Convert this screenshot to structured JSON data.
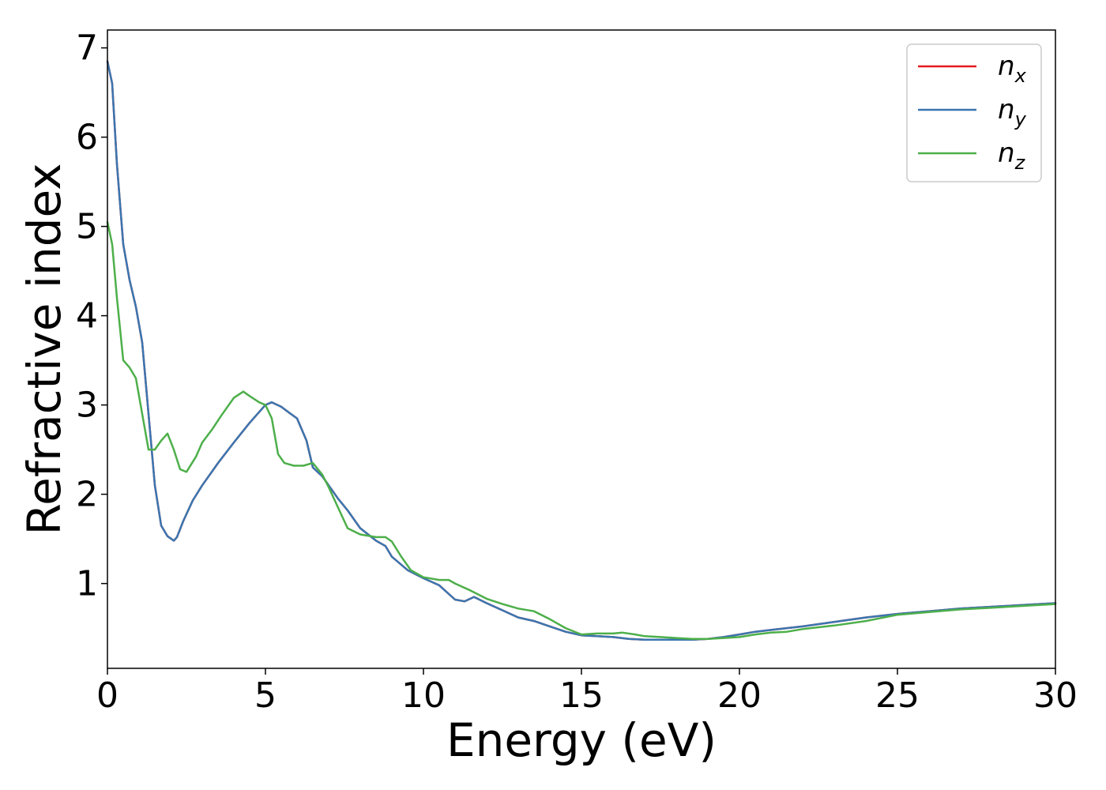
{
  "chart_data": {
    "type": "line",
    "xlabel": "Energy (eV)",
    "ylabel": "Refractive index",
    "xlim": [
      0,
      30
    ],
    "ylim": [
      0.05,
      7.2
    ],
    "xticks": [
      0,
      5,
      10,
      15,
      20,
      25,
      30
    ],
    "yticks": [
      1,
      2,
      3,
      4,
      5,
      6,
      7
    ],
    "grid": false,
    "legend_position": "top-right",
    "series": [
      {
        "name": "n",
        "subscript": "x",
        "color": "#e41a1c",
        "x": [
          0,
          0.15,
          0.3,
          0.5,
          0.7,
          0.9,
          1.1,
          1.3,
          1.5,
          1.7,
          1.9,
          2.1,
          2.2,
          2.4,
          2.7,
          3.0,
          3.5,
          4.0,
          4.5,
          5.0,
          5.2,
          5.5,
          5.8,
          6.0,
          6.3,
          6.5,
          6.8,
          7.0,
          7.3,
          7.6,
          8.0,
          8.5,
          8.8,
          9.0,
          9.5,
          10.0,
          10.5,
          11.0,
          11.3,
          11.6,
          12.0,
          12.5,
          13.0,
          13.5,
          14.0,
          14.5,
          15.0,
          15.5,
          16.0,
          16.5,
          17.0,
          17.5,
          18.0,
          18.5,
          19.0,
          19.5,
          20.0,
          20.5,
          21.0,
          21.5,
          22.0,
          23.0,
          24.0,
          25.0,
          26.0,
          27.0,
          28.0,
          29.0,
          30.0
        ],
        "values": [
          6.85,
          6.6,
          5.7,
          4.8,
          4.4,
          4.1,
          3.7,
          2.9,
          2.1,
          1.65,
          1.53,
          1.48,
          1.52,
          1.7,
          1.93,
          2.1,
          2.35,
          2.58,
          2.8,
          3.0,
          3.03,
          2.98,
          2.9,
          2.85,
          2.6,
          2.3,
          2.2,
          2.1,
          1.95,
          1.82,
          1.62,
          1.48,
          1.42,
          1.3,
          1.15,
          1.06,
          0.98,
          0.82,
          0.8,
          0.85,
          0.78,
          0.7,
          0.62,
          0.58,
          0.52,
          0.46,
          0.42,
          0.41,
          0.4,
          0.38,
          0.37,
          0.37,
          0.37,
          0.37,
          0.38,
          0.4,
          0.43,
          0.46,
          0.48,
          0.5,
          0.52,
          0.57,
          0.62,
          0.66,
          0.69,
          0.72,
          0.74,
          0.76,
          0.78
        ]
      },
      {
        "name": "n",
        "subscript": "y",
        "color": "#3a76b0",
        "x": [
          0,
          0.15,
          0.3,
          0.5,
          0.7,
          0.9,
          1.1,
          1.3,
          1.5,
          1.7,
          1.9,
          2.1,
          2.2,
          2.4,
          2.7,
          3.0,
          3.5,
          4.0,
          4.5,
          5.0,
          5.2,
          5.5,
          5.8,
          6.0,
          6.3,
          6.5,
          6.8,
          7.0,
          7.3,
          7.6,
          8.0,
          8.5,
          8.8,
          9.0,
          9.5,
          10.0,
          10.5,
          11.0,
          11.3,
          11.6,
          12.0,
          12.5,
          13.0,
          13.5,
          14.0,
          14.5,
          15.0,
          15.5,
          16.0,
          16.5,
          17.0,
          17.5,
          18.0,
          18.5,
          19.0,
          19.5,
          20.0,
          20.5,
          21.0,
          21.5,
          22.0,
          23.0,
          24.0,
          25.0,
          26.0,
          27.0,
          28.0,
          29.0,
          30.0
        ],
        "values": [
          6.85,
          6.6,
          5.7,
          4.8,
          4.4,
          4.1,
          3.7,
          2.9,
          2.1,
          1.65,
          1.53,
          1.48,
          1.52,
          1.7,
          1.93,
          2.1,
          2.35,
          2.58,
          2.8,
          3.0,
          3.03,
          2.98,
          2.9,
          2.85,
          2.6,
          2.3,
          2.2,
          2.1,
          1.95,
          1.82,
          1.62,
          1.48,
          1.42,
          1.3,
          1.15,
          1.06,
          0.98,
          0.82,
          0.8,
          0.85,
          0.78,
          0.7,
          0.62,
          0.58,
          0.52,
          0.46,
          0.42,
          0.41,
          0.4,
          0.38,
          0.37,
          0.37,
          0.37,
          0.37,
          0.38,
          0.4,
          0.43,
          0.46,
          0.48,
          0.5,
          0.52,
          0.57,
          0.62,
          0.66,
          0.69,
          0.72,
          0.74,
          0.76,
          0.78
        ]
      },
      {
        "name": "n",
        "subscript": "z",
        "color": "#4daf4a",
        "x": [
          0,
          0.15,
          0.3,
          0.5,
          0.7,
          0.9,
          1.1,
          1.3,
          1.5,
          1.7,
          1.9,
          2.1,
          2.3,
          2.5,
          2.8,
          3.0,
          3.3,
          3.6,
          4.0,
          4.3,
          4.5,
          4.8,
          5.0,
          5.2,
          5.4,
          5.6,
          5.9,
          6.2,
          6.5,
          6.8,
          7.0,
          7.3,
          7.6,
          8.0,
          8.5,
          8.8,
          9.0,
          9.3,
          9.6,
          10.0,
          10.5,
          10.8,
          11.0,
          11.5,
          12.0,
          12.5,
          13.0,
          13.5,
          14.0,
          14.5,
          15.0,
          15.5,
          16.0,
          16.3,
          16.7,
          17.0,
          17.5,
          18.0,
          18.5,
          19.0,
          19.5,
          20.0,
          20.5,
          21.0,
          21.5,
          22.0,
          23.0,
          24.0,
          25.0,
          26.0,
          27.0,
          28.0,
          29.0,
          30.0
        ],
        "values": [
          5.05,
          4.8,
          4.2,
          3.5,
          3.42,
          3.3,
          2.9,
          2.5,
          2.5,
          2.6,
          2.68,
          2.5,
          2.28,
          2.25,
          2.42,
          2.58,
          2.72,
          2.88,
          3.08,
          3.15,
          3.1,
          3.03,
          3.0,
          2.85,
          2.45,
          2.35,
          2.32,
          2.32,
          2.35,
          2.22,
          2.08,
          1.85,
          1.62,
          1.55,
          1.52,
          1.52,
          1.47,
          1.3,
          1.15,
          1.07,
          1.04,
          1.04,
          1.0,
          0.92,
          0.83,
          0.77,
          0.72,
          0.69,
          0.6,
          0.5,
          0.43,
          0.44,
          0.44,
          0.45,
          0.43,
          0.41,
          0.4,
          0.39,
          0.38,
          0.38,
          0.39,
          0.4,
          0.43,
          0.45,
          0.46,
          0.49,
          0.53,
          0.58,
          0.65,
          0.68,
          0.71,
          0.73,
          0.75,
          0.77
        ]
      }
    ]
  }
}
